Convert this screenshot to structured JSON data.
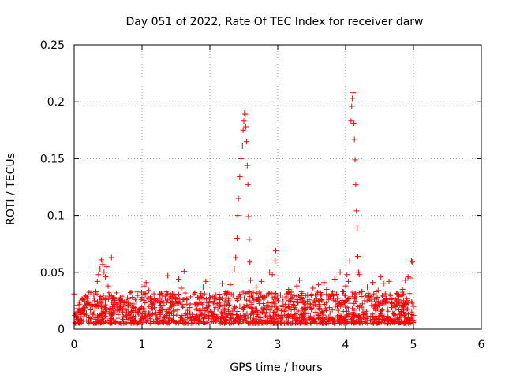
{
  "chart_data": {
    "type": "scatter",
    "title": "Day 051 of 2022, Rate Of TEC Index for receiver darw",
    "xlabel": "GPS time / hours",
    "ylabel": "ROTI / TECUs",
    "xlim": [
      0,
      6
    ],
    "ylim": [
      0,
      0.25
    ],
    "xticks": [
      0,
      1,
      2,
      3,
      4,
      5,
      6
    ],
    "xtick_labels": [
      "0",
      "1",
      "2",
      "3",
      "4",
      "5",
      "6"
    ],
    "yticks": [
      0,
      0.05,
      0.1,
      0.15,
      0.2,
      0.25
    ],
    "ytick_labels": [
      "0",
      "0.05",
      "0.1",
      "0.15",
      "0.2",
      "0.25"
    ],
    "grid": true,
    "marker": "+",
    "color": "#ff0000",
    "series": [
      {
        "name": "ROTI",
        "points": [
          [
            0.0,
            0.031
          ],
          [
            0.02,
            0.012
          ],
          [
            0.04,
            0.018
          ],
          [
            0.06,
            0.009
          ],
          [
            0.08,
            0.022
          ],
          [
            0.1,
            0.015
          ],
          [
            0.12,
            0.026
          ],
          [
            0.14,
            0.011
          ],
          [
            0.16,
            0.019
          ],
          [
            0.18,
            0.014
          ],
          [
            0.2,
            0.024
          ],
          [
            0.22,
            0.01
          ],
          [
            0.24,
            0.017
          ],
          [
            0.26,
            0.021
          ],
          [
            0.28,
            0.013
          ],
          [
            0.3,
            0.025
          ],
          [
            0.32,
            0.033
          ],
          [
            0.34,
            0.042
          ],
          [
            0.36,
            0.048
          ],
          [
            0.38,
            0.053
          ],
          [
            0.4,
            0.061
          ],
          [
            0.42,
            0.057
          ],
          [
            0.44,
            0.05
          ],
          [
            0.46,
            0.046
          ],
          [
            0.48,
            0.055
          ],
          [
            0.5,
            0.038
          ],
          [
            0.52,
            0.029
          ],
          [
            0.55,
            0.063
          ],
          [
            0.58,
            0.027
          ],
          [
            0.6,
            0.02
          ],
          [
            0.64,
            0.016
          ],
          [
            0.68,
            0.023
          ],
          [
            0.72,
            0.018
          ],
          [
            0.76,
            0.012
          ],
          [
            0.8,
            0.021
          ],
          [
            0.84,
            0.015
          ],
          [
            0.88,
            0.019
          ],
          [
            0.92,
            0.024
          ],
          [
            0.96,
            0.017
          ],
          [
            1.0,
            0.028
          ],
          [
            1.03,
            0.038
          ],
          [
            1.06,
            0.041
          ],
          [
            1.1,
            0.034
          ],
          [
            1.14,
            0.022
          ],
          [
            1.18,
            0.019
          ],
          [
            1.22,
            0.025
          ],
          [
            1.26,
            0.031
          ],
          [
            1.3,
            0.017
          ],
          [
            1.34,
            0.029
          ],
          [
            1.38,
            0.047
          ],
          [
            1.42,
            0.023
          ],
          [
            1.46,
            0.016
          ],
          [
            1.5,
            0.027
          ],
          [
            1.54,
            0.044
          ],
          [
            1.58,
            0.036
          ],
          [
            1.62,
            0.051
          ],
          [
            1.66,
            0.026
          ],
          [
            1.7,
            0.019
          ],
          [
            1.74,
            0.013
          ],
          [
            1.78,
            0.022
          ],
          [
            1.82,
            0.028
          ],
          [
            1.86,
            0.016
          ],
          [
            1.9,
            0.037
          ],
          [
            1.94,
            0.042
          ],
          [
            1.98,
            0.021
          ],
          [
            2.02,
            0.015
          ],
          [
            2.06,
            0.024
          ],
          [
            2.1,
            0.011
          ],
          [
            2.14,
            0.026
          ],
          [
            2.18,
            0.04
          ],
          [
            2.22,
            0.018
          ],
          [
            2.26,
            0.032
          ],
          [
            2.3,
            0.039
          ],
          [
            2.34,
            0.03
          ],
          [
            2.36,
            0.053
          ],
          [
            2.38,
            0.063
          ],
          [
            2.4,
            0.08
          ],
          [
            2.41,
            0.1
          ],
          [
            2.42,
            0.115
          ],
          [
            2.44,
            0.134
          ],
          [
            2.46,
            0.15
          ],
          [
            2.48,
            0.161
          ],
          [
            2.49,
            0.175
          ],
          [
            2.5,
            0.183
          ],
          [
            2.51,
            0.19
          ],
          [
            2.52,
            0.189
          ],
          [
            2.53,
            0.178
          ],
          [
            2.54,
            0.165
          ],
          [
            2.55,
            0.144
          ],
          [
            2.56,
            0.127
          ],
          [
            2.57,
            0.099
          ],
          [
            2.58,
            0.079
          ],
          [
            2.59,
            0.059
          ],
          [
            2.6,
            0.043
          ],
          [
            2.64,
            0.032
          ],
          [
            2.68,
            0.037
          ],
          [
            2.72,
            0.025
          ],
          [
            2.76,
            0.042
          ],
          [
            2.8,
            0.029
          ],
          [
            2.84,
            0.021
          ],
          [
            2.88,
            0.05
          ],
          [
            2.92,
            0.048
          ],
          [
            2.96,
            0.06
          ],
          [
            2.97,
            0.069
          ],
          [
            3.0,
            0.018
          ],
          [
            3.04,
            0.03
          ],
          [
            3.08,
            0.024
          ],
          [
            3.12,
            0.016
          ],
          [
            3.16,
            0.035
          ],
          [
            3.2,
            0.027
          ],
          [
            3.24,
            0.021
          ],
          [
            3.28,
            0.038
          ],
          [
            3.32,
            0.043
          ],
          [
            3.36,
            0.025
          ],
          [
            3.4,
            0.017
          ],
          [
            3.44,
            0.03
          ],
          [
            3.48,
            0.022
          ],
          [
            3.52,
            0.036
          ],
          [
            3.56,
            0.015
          ],
          [
            3.6,
            0.039
          ],
          [
            3.64,
            0.026
          ],
          [
            3.68,
            0.041
          ],
          [
            3.72,
            0.035
          ],
          [
            3.76,
            0.019
          ],
          [
            3.8,
            0.031
          ],
          [
            3.84,
            0.044
          ],
          [
            3.88,
            0.027
          ],
          [
            3.92,
            0.05
          ],
          [
            3.96,
            0.033
          ],
          [
            4.0,
            0.038
          ],
          [
            4.02,
            0.048
          ],
          [
            4.04,
            0.042
          ],
          [
            4.06,
            0.06
          ],
          [
            4.08,
            0.183
          ],
          [
            4.09,
            0.196
          ],
          [
            4.1,
            0.203
          ],
          [
            4.11,
            0.208
          ],
          [
            4.12,
            0.181
          ],
          [
            4.13,
            0.167
          ],
          [
            4.14,
            0.149
          ],
          [
            4.15,
            0.127
          ],
          [
            4.16,
            0.104
          ],
          [
            4.17,
            0.089
          ],
          [
            4.18,
            0.064
          ],
          [
            4.19,
            0.05
          ],
          [
            4.2,
            0.048
          ],
          [
            4.24,
            0.033
          ],
          [
            4.28,
            0.025
          ],
          [
            4.32,
            0.037
          ],
          [
            4.36,
            0.029
          ],
          [
            4.4,
            0.041
          ],
          [
            4.44,
            0.022
          ],
          [
            4.48,
            0.034
          ],
          [
            4.52,
            0.046
          ],
          [
            4.56,
            0.04
          ],
          [
            4.6,
            0.027
          ],
          [
            4.64,
            0.042
          ],
          [
            4.68,
            0.019
          ],
          [
            4.72,
            0.024
          ],
          [
            4.76,
            0.031
          ],
          [
            4.8,
            0.021
          ],
          [
            4.84,
            0.035
          ],
          [
            4.88,
            0.043
          ],
          [
            4.92,
            0.046
          ],
          [
            4.95,
            0.045
          ],
          [
            4.97,
            0.06
          ],
          [
            4.98,
            0.059
          ],
          [
            5.0,
            0.02
          ],
          [
            5.0,
            0.012
          ],
          [
            4.99,
            0.008
          ]
        ]
      }
    ]
  }
}
